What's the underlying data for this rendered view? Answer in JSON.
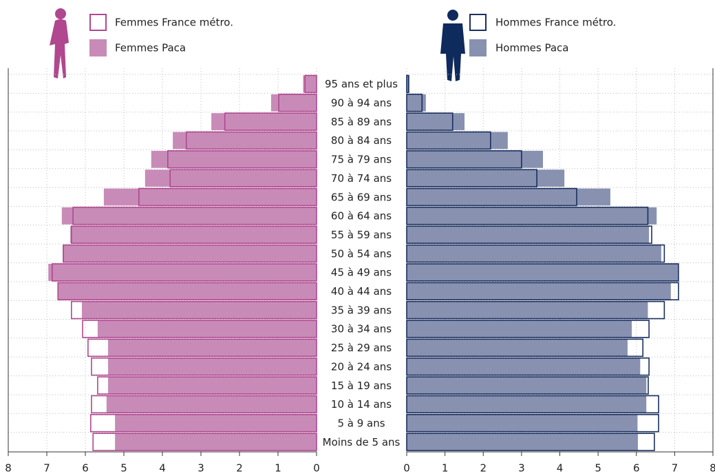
{
  "chart_data": {
    "type": "pyramid",
    "categories": [
      "95 ans et plus",
      "90 à 94 ans",
      "85 à 89 ans",
      "80 à 84 ans",
      "75 à 79 ans",
      "70 à 74 ans",
      "65 à 69 ans",
      "60 à 64 ans",
      "55 à 59 ans",
      "50 à 54 ans",
      "45 à 49 ans",
      "40 à 44 ans",
      "35 à 39 ans",
      "30 à 34 ans",
      "25 à 29 ans",
      "20 à 24 ans",
      "15 à 19 ans",
      "10 à 14 ans",
      "5 à 9 ans",
      "Moins de 5 ans"
    ],
    "series": [
      {
        "name": "Femmes Paca",
        "side": "left",
        "style": "fill",
        "color": "#c88bb8",
        "values": [
          0.35,
          1.18,
          2.73,
          3.73,
          4.29,
          4.45,
          5.52,
          6.61,
          6.39,
          6.59,
          6.96,
          6.71,
          6.09,
          5.68,
          5.41,
          5.41,
          5.41,
          5.45,
          5.23,
          5.23
        ]
      },
      {
        "name": "Femmes France métro.",
        "side": "left",
        "style": "outline",
        "color": "#b0478f",
        "values": [
          0.3,
          0.98,
          2.38,
          3.38,
          3.86,
          3.8,
          4.61,
          6.32,
          6.36,
          6.57,
          6.86,
          6.71,
          6.36,
          6.07,
          5.93,
          5.84,
          5.68,
          5.84,
          5.86,
          5.8
        ]
      },
      {
        "name": "Hommes Paca",
        "side": "right",
        "style": "fill",
        "color": "#8891b0",
        "values": [
          0.07,
          0.5,
          1.51,
          2.64,
          3.56,
          4.12,
          5.32,
          6.53,
          6.33,
          6.65,
          7.09,
          6.9,
          6.3,
          5.88,
          5.77,
          6.1,
          6.26,
          6.26,
          6.03,
          6.04
        ]
      },
      {
        "name": "Hommes France métro.",
        "side": "right",
        "style": "outline",
        "color": "#1a2f5e",
        "values": [
          0.05,
          0.4,
          1.2,
          2.19,
          3.0,
          3.4,
          4.44,
          6.3,
          6.4,
          6.73,
          7.1,
          7.1,
          6.73,
          6.33,
          6.17,
          6.33,
          6.31,
          6.58,
          6.58,
          6.47
        ]
      }
    ],
    "xlim": [
      0,
      8
    ],
    "xticks": [
      0,
      1,
      2,
      3,
      4,
      5,
      6,
      7,
      8
    ],
    "grid": true
  }
}
